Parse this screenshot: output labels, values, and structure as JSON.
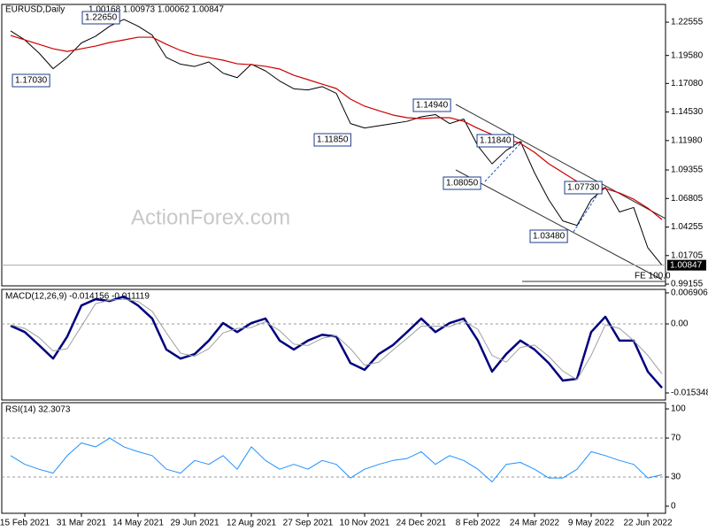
{
  "chart_data": [
    {
      "type": "line",
      "title": "EURUSD,Daily",
      "subtitle": "1.00168 1.00973 1.00062 1.00847",
      "watermark": "ActionForex.com",
      "ylim": [
        0.99,
        1.2414
      ],
      "yticks": [
        1.22555,
        {
          "value": 1.1958,
          "label": "1.19580"
        },
        {
          "value": 1.1708,
          "label": "1.17080"
        },
        {
          "value": 1.1453,
          "label": "1.14530"
        },
        {
          "value": 1.1198,
          "label": "1.11980"
        },
        1.09355,
        1.06805,
        1.04255,
        1.01705,
        0.99155
      ],
      "last_price": 1.00847,
      "annotations": [
        "1.22650",
        "1.17030",
        "1.11850",
        "1.14940",
        "1.11840",
        "1.08050",
        "1.07730",
        "1.03480",
        "FE 100.0"
      ],
      "series": [
        {
          "name": "EURUSD",
          "color": "#000000",
          "values": [
            1.2177,
            1.2097,
            1.198,
            1.184,
            1.194,
            1.207,
            1.213,
            1.222,
            1.228,
            1.222,
            1.214,
            1.194,
            1.188,
            1.186,
            1.19,
            1.18,
            1.176,
            1.188,
            1.182,
            1.173,
            1.166,
            1.165,
            1.168,
            1.162,
            1.135,
            1.131,
            1.133,
            1.135,
            1.137,
            1.141,
            1.143,
            1.135,
            1.139,
            1.115,
            1.099,
            1.111,
            1.119,
            1.091,
            1.067,
            1.048,
            1.044,
            1.067,
            1.078,
            1.056,
            1.06,
            1.024,
            1.00847
          ]
        },
        {
          "name": "MA",
          "color": "#cc0000",
          "values": [
            1.2137,
            1.2097,
            1.2058,
            1.2018,
            1.1994,
            1.2018,
            1.2042,
            1.2074,
            1.2097,
            1.2121,
            1.2121,
            1.2058,
            1.2003,
            1.1963,
            1.1939,
            1.1916,
            1.1884,
            1.1876,
            1.1861,
            1.1837,
            1.1781,
            1.1742,
            1.1702,
            1.1663,
            1.1568,
            1.1505,
            1.1465,
            1.1426,
            1.1402,
            1.1394,
            1.1402,
            1.1402,
            1.137,
            1.1307,
            1.1251,
            1.1212,
            1.1173,
            1.1093,
            1.0991,
            1.0912,
            1.0833,
            1.0793,
            1.0769,
            1.073,
            1.0674,
            1.0595,
            1.0492
          ]
        }
      ]
    },
    {
      "type": "line",
      "title": "MACD(12,26,9) -0.014156 -0.011119",
      "ylim": [
        -0.01692,
        0.00768
      ],
      "yticks": [
        0.006906,
        {
          "value": 0,
          "label": "0.00"
        },
        -0.015348
      ],
      "series": [
        {
          "name": "MACD",
          "color": "#000080",
          "values": [
            -0.0004,
            -0.0018,
            -0.0047,
            -0.0077,
            -0.0028,
            0.0041,
            0.0055,
            0.0051,
            0.0061,
            0.0041,
            0.0012,
            -0.0057,
            -0.0077,
            -0.0067,
            -0.0037,
            0.0002,
            -0.0018,
            0.0002,
            0.0012,
            -0.0037,
            -0.0057,
            -0.0037,
            -0.0024,
            -0.0028,
            -0.0087,
            -0.0102,
            -0.0067,
            -0.0047,
            -0.0018,
            0.0012,
            -0.0018,
            0.0002,
            0.0012,
            -0.0037,
            -0.0106,
            -0.0067,
            -0.0037,
            -0.0057,
            -0.0087,
            -0.0126,
            -0.0122,
            -0.0018,
            0.0016,
            -0.0037,
            -0.0037,
            -0.0106,
            -0.0142
          ]
        },
        {
          "name": "Signal",
          "color": "#a0a0a0",
          "values": [
            -0.0002,
            -0.001,
            -0.003,
            -0.006,
            -0.0055,
            -0.0005,
            0.0045,
            0.0053,
            0.0055,
            0.005,
            0.0028,
            -0.002,
            -0.0065,
            -0.0072,
            -0.0055,
            -0.002,
            -0.001,
            -0.0008,
            0.0005,
            -0.0015,
            -0.0045,
            -0.0048,
            -0.0032,
            -0.0026,
            -0.0055,
            -0.0092,
            -0.0085,
            -0.0058,
            -0.0032,
            -0.0005,
            -0.0005,
            -0.0006,
            0.0006,
            -0.0012,
            -0.007,
            -0.0085,
            -0.0052,
            -0.0047,
            -0.0072,
            -0.0105,
            -0.0124,
            -0.007,
            -0.0002,
            -0.001,
            -0.0037,
            -0.007,
            -0.0111
          ]
        }
      ]
    },
    {
      "type": "line",
      "title": "RSI(14) 32.3073",
      "ylim": [
        -7.3,
        106.4
      ],
      "yticks": [
        100,
        70,
        30,
        0
      ],
      "dashed_levels": [
        70,
        30
      ],
      "categories": [
        null,
        "15 Feb 2021",
        null,
        null,
        null,
        "31 Mar 2021",
        null,
        null,
        null,
        "14 May 2021",
        null,
        null,
        null,
        "29 Jun 2021",
        null,
        null,
        null,
        "12 Aug 2021",
        null,
        null,
        null,
        "27 Sep 2021",
        null,
        null,
        null,
        "10 Nov 2021",
        null,
        null,
        null,
        "24 Dec 2021",
        null,
        null,
        null,
        "8 Feb 2022",
        null,
        null,
        null,
        "24 Mar 2022",
        null,
        null,
        null,
        "9 May 2022",
        null,
        null,
        null,
        "22 Jun 2022",
        null
      ],
      "series": [
        {
          "name": "RSI",
          "color": "#1e90ff",
          "values": [
            52,
            43,
            38,
            34,
            52,
            65,
            61,
            70,
            61,
            56,
            52,
            38,
            34,
            47,
            43,
            52,
            38,
            61,
            47,
            38,
            43,
            38,
            47,
            43,
            29,
            38,
            43,
            47,
            49,
            56,
            43,
            52,
            47,
            38,
            25,
            43,
            45,
            38,
            29,
            29,
            38,
            56,
            52,
            47,
            43,
            29,
            32.3073
          ]
        }
      ]
    }
  ]
}
